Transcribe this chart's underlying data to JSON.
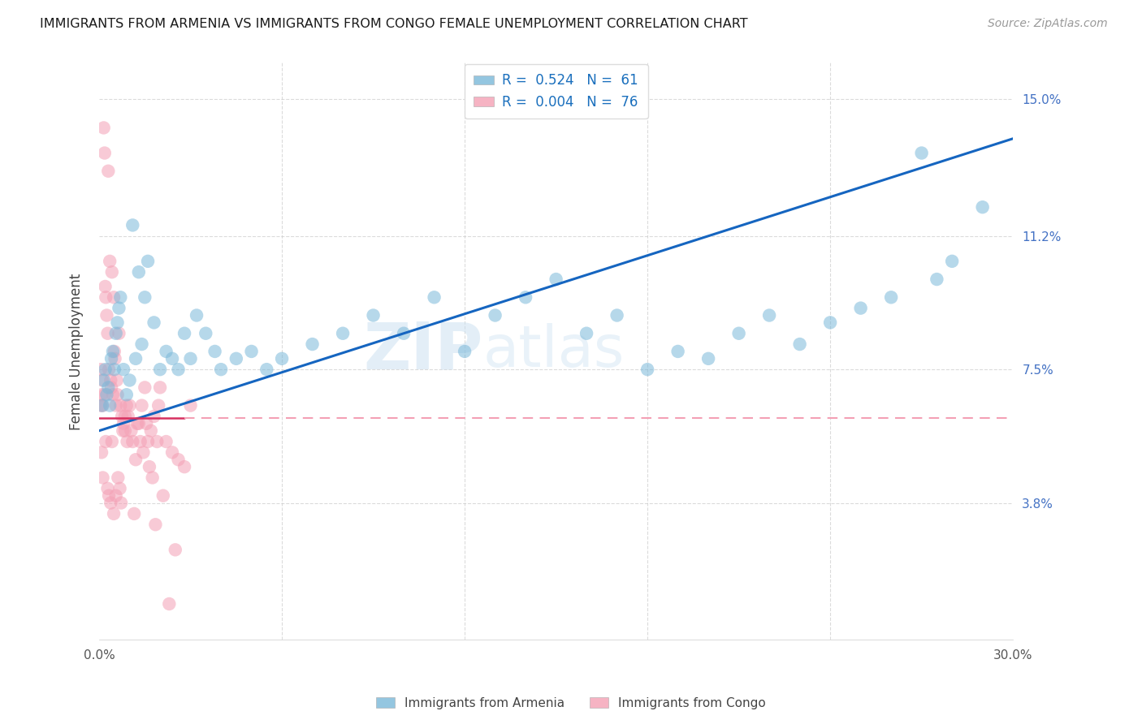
{
  "title": "IMMIGRANTS FROM ARMENIA VS IMMIGRANTS FROM CONGO FEMALE UNEMPLOYMENT CORRELATION CHART",
  "source": "Source: ZipAtlas.com",
  "legend_label_armenia": "Immigrants from Armenia",
  "legend_label_congo": "Immigrants from Congo",
  "xlim": [
    0.0,
    30.0
  ],
  "ylim": [
    0.0,
    16.0
  ],
  "ytick_vals": [
    3.8,
    7.5,
    11.2,
    15.0
  ],
  "ytick_labels": [
    "3.8%",
    "7.5%",
    "11.2%",
    "15.0%"
  ],
  "xtick_vals": [
    0.0,
    6.0,
    12.0,
    18.0,
    24.0,
    30.0
  ],
  "xtick_labels": [
    "0.0%",
    "",
    "",
    "",
    "",
    "30.0%"
  ],
  "color_armenia": "#7ab8d9",
  "color_congo": "#f4a0b5",
  "trendline_armenia_color": "#1565c0",
  "trendline_congo_solid_color": "#d63060",
  "trendline_congo_dash_color": "#f4a0b5",
  "background_color": "#ffffff",
  "grid_color": "#cccccc",
  "R_armenia": 0.524,
  "N_armenia": 61,
  "R_congo": 0.004,
  "N_congo": 76,
  "armenia_x": [
    0.1,
    0.15,
    0.2,
    0.25,
    0.3,
    0.35,
    0.4,
    0.45,
    0.5,
    0.55,
    0.6,
    0.65,
    0.7,
    0.8,
    0.9,
    1.0,
    1.1,
    1.2,
    1.3,
    1.4,
    1.5,
    1.6,
    1.8,
    2.0,
    2.2,
    2.4,
    2.6,
    2.8,
    3.0,
    3.2,
    3.5,
    3.8,
    4.0,
    4.5,
    5.0,
    5.5,
    6.0,
    7.0,
    8.0,
    9.0,
    10.0,
    11.0,
    12.0,
    13.0,
    14.0,
    15.0,
    16.0,
    17.0,
    18.0,
    19.0,
    20.0,
    21.0,
    22.0,
    23.0,
    24.0,
    25.0,
    26.0,
    27.0,
    27.5,
    28.0,
    29.0
  ],
  "armenia_y": [
    6.5,
    7.2,
    7.5,
    6.8,
    7.0,
    6.5,
    7.8,
    8.0,
    7.5,
    8.5,
    8.8,
    9.2,
    9.5,
    7.5,
    6.8,
    7.2,
    11.5,
    7.8,
    10.2,
    8.2,
    9.5,
    10.5,
    8.8,
    7.5,
    8.0,
    7.8,
    7.5,
    8.5,
    7.8,
    9.0,
    8.5,
    8.0,
    7.5,
    7.8,
    8.0,
    7.5,
    7.8,
    8.2,
    8.5,
    9.0,
    8.5,
    9.5,
    8.0,
    9.0,
    9.5,
    10.0,
    8.5,
    9.0,
    7.5,
    8.0,
    7.8,
    8.5,
    9.0,
    8.2,
    8.8,
    9.2,
    9.5,
    13.5,
    10.0,
    10.5,
    12.0
  ],
  "congo_x": [
    0.05,
    0.08,
    0.1,
    0.12,
    0.15,
    0.18,
    0.2,
    0.22,
    0.25,
    0.28,
    0.3,
    0.32,
    0.35,
    0.38,
    0.4,
    0.42,
    0.45,
    0.48,
    0.5,
    0.52,
    0.55,
    0.58,
    0.6,
    0.65,
    0.7,
    0.75,
    0.8,
    0.85,
    0.9,
    0.95,
    1.0,
    1.1,
    1.2,
    1.3,
    1.4,
    1.5,
    1.6,
    1.7,
    1.8,
    1.9,
    2.0,
    2.2,
    2.4,
    2.6,
    2.8,
    3.0,
    0.05,
    0.08,
    0.12,
    0.18,
    0.22,
    0.28,
    0.32,
    0.38,
    0.42,
    0.48,
    0.55,
    0.62,
    0.68,
    0.72,
    0.78,
    0.85,
    0.92,
    1.05,
    1.15,
    1.25,
    1.35,
    1.45,
    1.55,
    1.65,
    1.75,
    1.85,
    1.95,
    2.1,
    2.3,
    2.5
  ],
  "congo_y": [
    7.5,
    6.8,
    7.2,
    6.5,
    14.2,
    13.5,
    9.8,
    9.5,
    9.0,
    8.5,
    13.0,
    7.5,
    10.5,
    7.2,
    7.0,
    10.2,
    6.8,
    9.5,
    8.0,
    7.8,
    6.5,
    7.2,
    6.8,
    8.5,
    6.5,
    6.2,
    6.0,
    5.8,
    6.5,
    6.2,
    6.5,
    5.5,
    5.0,
    6.0,
    6.5,
    7.0,
    5.5,
    5.8,
    6.2,
    5.5,
    7.0,
    5.5,
    5.2,
    5.0,
    4.8,
    6.5,
    6.5,
    5.2,
    4.5,
    6.8,
    5.5,
    4.2,
    4.0,
    3.8,
    5.5,
    3.5,
    4.0,
    4.5,
    4.2,
    3.8,
    5.8,
    6.2,
    5.5,
    5.8,
    3.5,
    6.0,
    5.5,
    5.2,
    6.0,
    4.8,
    4.5,
    3.2,
    6.5,
    4.0,
    1.0,
    2.5
  ],
  "congo_trendline_xmax_solid": 2.8,
  "armenia_trendline_slope": 0.27,
  "armenia_trendline_intercept": 5.8,
  "congo_trendline_intercept": 6.15
}
